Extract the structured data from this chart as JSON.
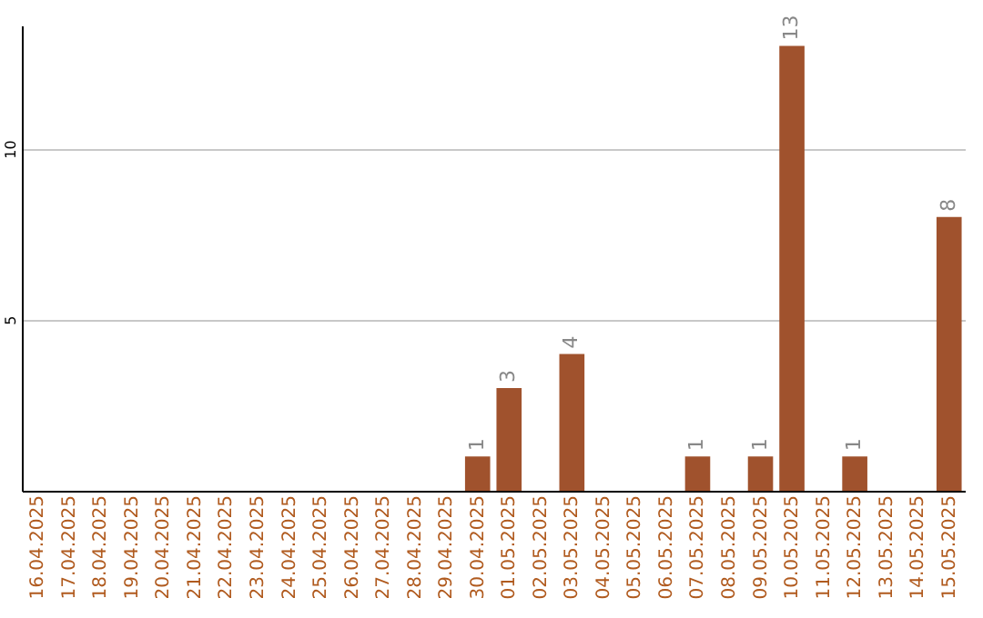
{
  "chart_data": {
    "type": "bar",
    "categories": [
      "16.04.2025",
      "17.04.2025",
      "18.04.2025",
      "19.04.2025",
      "20.04.2025",
      "21.04.2025",
      "22.04.2025",
      "23.04.2025",
      "24.04.2025",
      "25.04.2025",
      "26.04.2025",
      "27.04.2025",
      "28.04.2025",
      "29.04.2025",
      "30.04.2025",
      "01.05.2025",
      "02.05.2025",
      "03.05.2025",
      "04.05.2025",
      "05.05.2025",
      "06.05.2025",
      "07.05.2025",
      "08.05.2025",
      "09.05.2025",
      "10.05.2025",
      "11.05.2025",
      "12.05.2025",
      "13.05.2025",
      "14.05.2025",
      "15.05.2025"
    ],
    "values": [
      0,
      0,
      0,
      0,
      0,
      0,
      0,
      0,
      0,
      0,
      0,
      0,
      0,
      0,
      1,
      3,
      0,
      4,
      0,
      0,
      0,
      1,
      0,
      1,
      13,
      0,
      1,
      0,
      0,
      8
    ],
    "value_labels": [
      null,
      null,
      null,
      null,
      null,
      null,
      null,
      null,
      null,
      null,
      null,
      null,
      null,
      null,
      "1",
      "3",
      null,
      "4",
      null,
      null,
      null,
      "1",
      null,
      "1",
      "13",
      null,
      "1",
      null,
      null,
      "8"
    ],
    "color": "#a0522d",
    "ylim": [
      0,
      13.6
    ],
    "yticks": [
      5,
      10
    ],
    "grid": "y"
  }
}
